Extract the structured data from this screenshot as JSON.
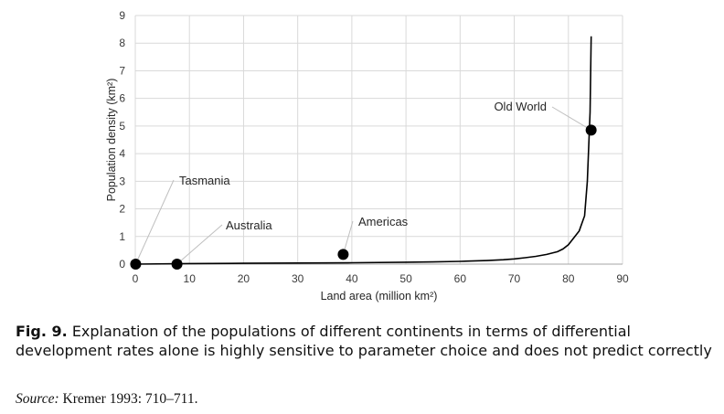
{
  "chart_data": {
    "type": "scatter",
    "xlabel": "Land area (million km²)",
    "ylabel": "Population density (km²)",
    "xlim": [
      0,
      90
    ],
    "ylim": [
      0,
      9
    ],
    "xticks": [
      "0",
      "10",
      "20",
      "30",
      "40",
      "50",
      "60",
      "70",
      "80",
      "90"
    ],
    "yticks": [
      "0",
      "1",
      "2",
      "3",
      "4",
      "5",
      "6",
      "7",
      "8",
      "9"
    ],
    "grid": true,
    "legend": "none",
    "points": [
      {
        "label": "Tasmania",
        "x": 0.07,
        "y": 0.0
      },
      {
        "label": "Australia",
        "x": 7.7,
        "y": 0.0
      },
      {
        "label": "Americas",
        "x": 38.4,
        "y": 0.35
      },
      {
        "label": "Old World",
        "x": 84.2,
        "y": 4.85
      }
    ],
    "curve": {
      "x": [
        0,
        10,
        20,
        30,
        40,
        50,
        55,
        60,
        65,
        68,
        70,
        72,
        74,
        76,
        78,
        79,
        80,
        81,
        82,
        83,
        83.5,
        84,
        84.2
      ],
      "y": [
        0.0,
        0.02,
        0.03,
        0.04,
        0.05,
        0.07,
        0.08,
        0.1,
        0.13,
        0.16,
        0.19,
        0.23,
        0.28,
        0.35,
        0.45,
        0.55,
        0.7,
        0.95,
        1.2,
        1.75,
        3.0,
        5.5,
        8.25
      ]
    }
  },
  "caption": {
    "lead": "Fig. 9.",
    "text": " Explanation of the populations of different continents in terms of differential development rates alone is highly sensitive to parameter choice and does not predict correctly"
  },
  "source": {
    "label": "Source:",
    "text": " Kremer 1993: 710–711."
  }
}
